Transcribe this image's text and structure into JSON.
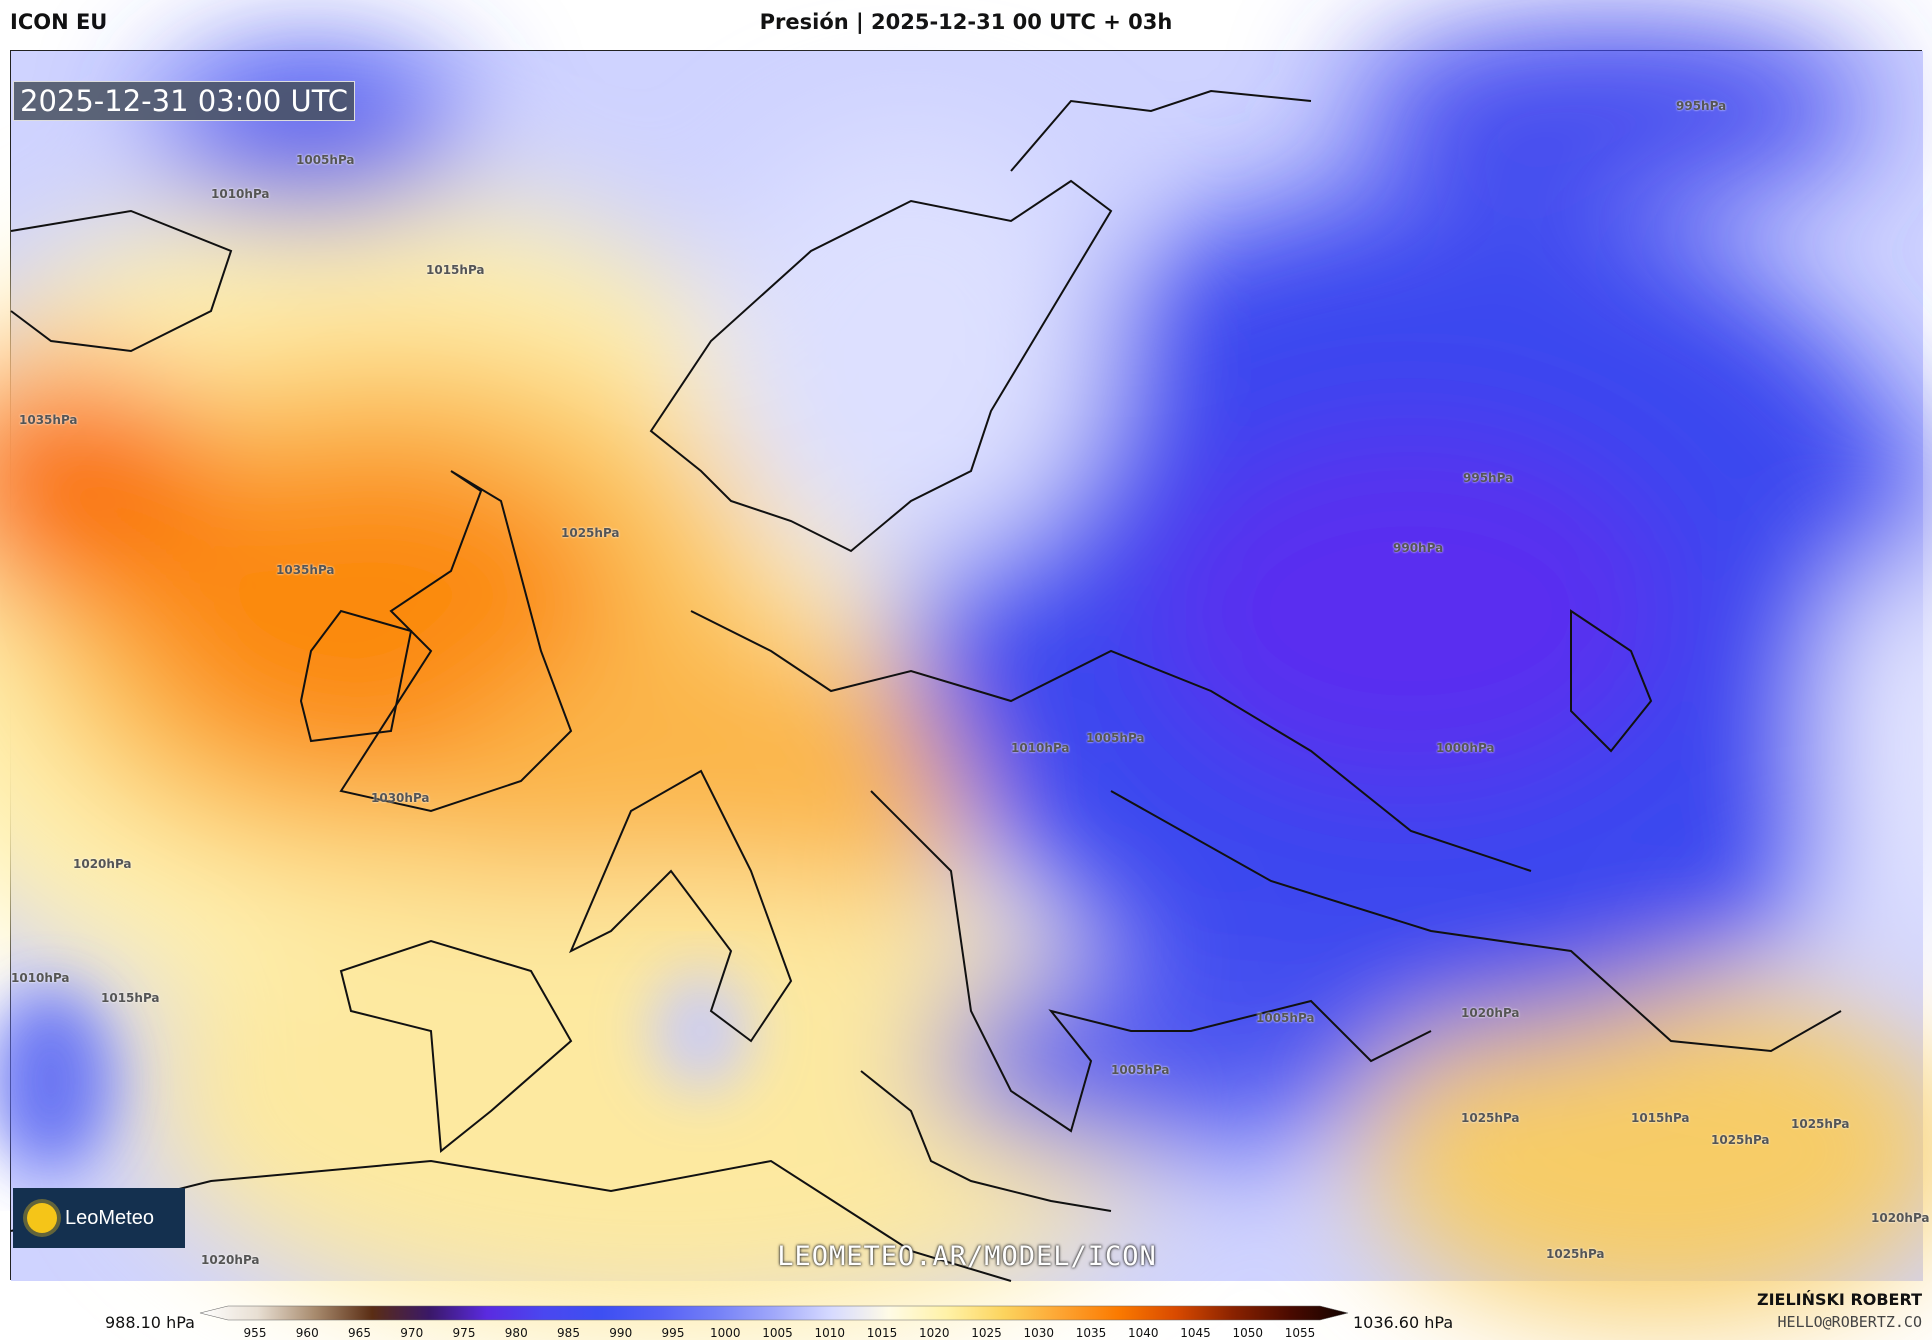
{
  "header": {
    "model": "ICON EU",
    "title": "Presión | 2025-12-31 00 UTC + 03h"
  },
  "map": {
    "valid_time": "2025-12-31 03:00 UTC",
    "watermark": "LEOMETEO.AR/MODEL/ICON",
    "logo_text": "LeoMeteo",
    "isobar_labels": [
      "995hPa",
      "1005hPa",
      "1010hPa",
      "1015hPa",
      "1035hPa",
      "1025hPa",
      "1035hPa",
      "995hPa",
      "990hPa",
      "1010hPa",
      "1005hPa",
      "1000hPa",
      "1030hPa",
      "1020hPa",
      "1010hPa",
      "1015hPa",
      "1005hPa",
      "1020hPa",
      "1005hPa",
      "1025hPa",
      "1015hPa",
      "1025hPa",
      "1025hPa",
      "1020hPa",
      "1025hPa",
      "1020hPa"
    ]
  },
  "legend": {
    "min_label": "988.10 hPa",
    "max_label": "1036.60 hPa",
    "ticks": [
      "955",
      "960",
      "965",
      "970",
      "975",
      "980",
      "985",
      "990",
      "995",
      "1000",
      "1005",
      "1010",
      "1015",
      "1020",
      "1025",
      "1030",
      "1035",
      "1040",
      "1045",
      "1050",
      "1055"
    ],
    "colors": [
      "#ffffff",
      "#e8dfd3",
      "#a88b6e",
      "#5a2d14",
      "#3a1868",
      "#5a2be0",
      "#4a47f0",
      "#3d4ff2",
      "#5560f5",
      "#7480f7",
      "#a0a8fa",
      "#d6daff",
      "#fffbe6",
      "#fff2a8",
      "#fcd45e",
      "#fda432",
      "#fb7a00",
      "#d94a00",
      "#8a2200",
      "#4a0a00",
      "#120300"
    ]
  },
  "credits": {
    "author": "ZIELIŃSKI ROBERT",
    "email": "HELLO@ROBERTZ.CO"
  }
}
